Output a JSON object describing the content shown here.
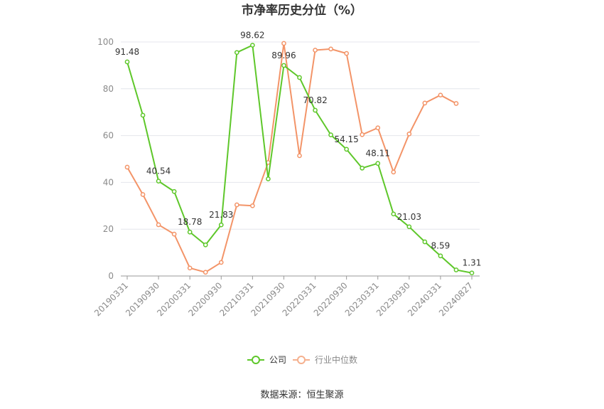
{
  "chart_data": {
    "type": "line",
    "title": "市净率历史分位（%）",
    "ylim": [
      0,
      100
    ],
    "yticks": [
      0,
      20,
      40,
      60,
      80,
      100
    ],
    "x_tick_labels": [
      "20190331",
      "20190930",
      "20200331",
      "20200930",
      "20210331",
      "20210930",
      "20220331",
      "20220930",
      "20230331",
      "20230930",
      "20240331",
      "20240827"
    ],
    "grid": "horizontal",
    "legend_position": "bottom-center",
    "series": [
      {
        "name": "公司",
        "color": "#5ec72a",
        "values": [
          91.48,
          68.7,
          40.54,
          36.1,
          18.78,
          13.3,
          21.83,
          95.5,
          98.62,
          41.5,
          89.96,
          84.8,
          70.82,
          60.3,
          54.15,
          46.1,
          48.11,
          26.5,
          21.03,
          14.6,
          8.59,
          2.6,
          1.31
        ],
        "labels": {
          "0": "91.48",
          "2": "40.54",
          "4": "18.78",
          "6": "21.83",
          "8": "98.62",
          "10": "89.96",
          "12": "70.82",
          "14": "54.15",
          "16": "48.11",
          "18": "21.03",
          "20": "8.59",
          "22": "1.31"
        }
      },
      {
        "name": "行业中位数",
        "color": "#f39468",
        "values": [
          46.5,
          34.8,
          21.9,
          17.9,
          3.4,
          1.6,
          5.8,
          30.4,
          30.0,
          48.5,
          99.4,
          51.4,
          96.5,
          97.0,
          95.1,
          60.4,
          63.3,
          44.4,
          60.7,
          73.9,
          77.3,
          73.7,
          null
        ]
      }
    ]
  },
  "source_text": "数据来源：恒生聚源"
}
